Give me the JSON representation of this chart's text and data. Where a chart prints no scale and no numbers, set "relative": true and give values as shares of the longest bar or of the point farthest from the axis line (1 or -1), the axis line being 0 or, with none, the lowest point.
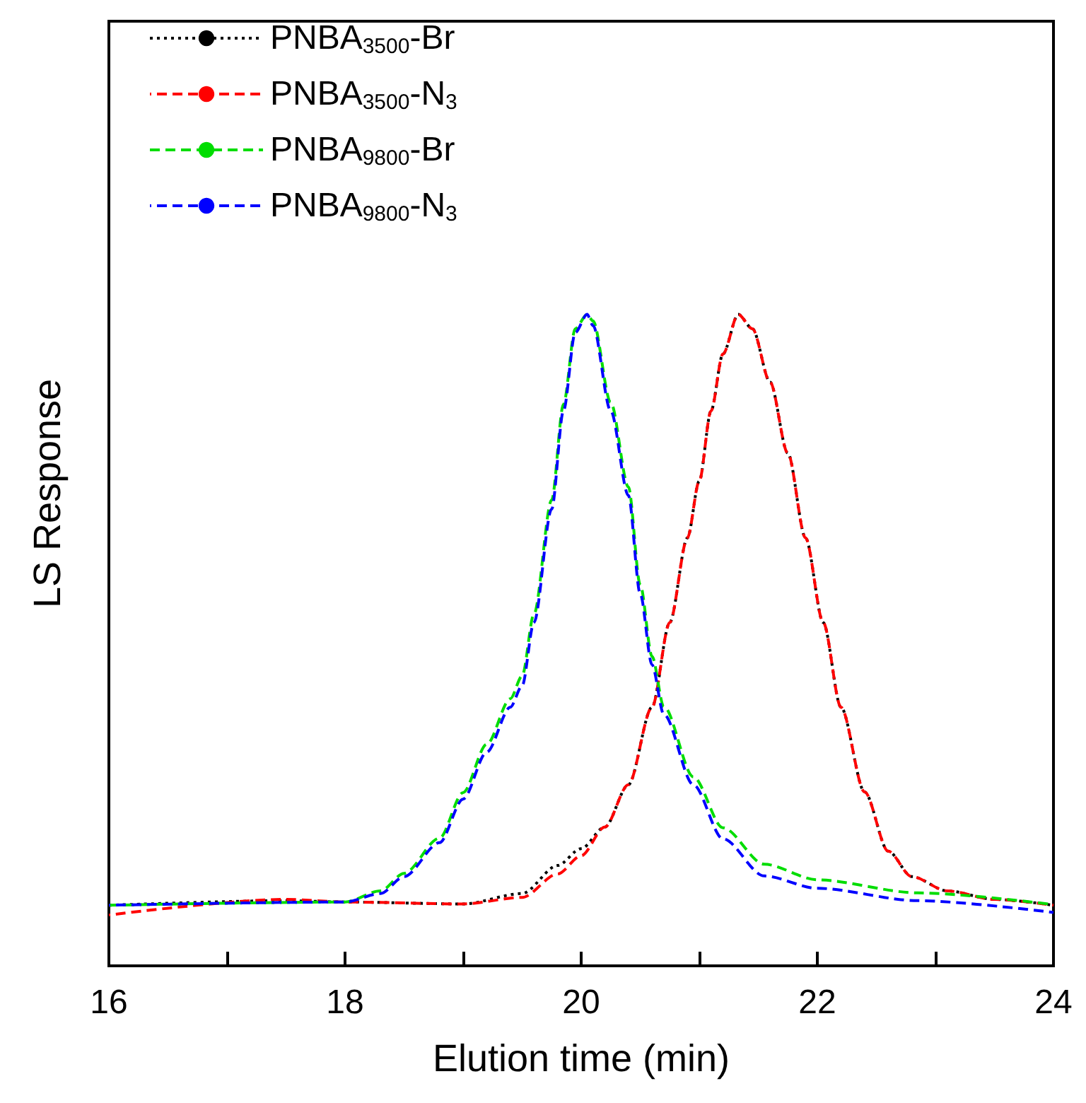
{
  "chart_data": {
    "type": "line",
    "xlabel": "Elution time (min)",
    "ylabel": "LS Response",
    "relative": true,
    "legend": "top left",
    "grid": false,
    "marker": "none",
    "xlim": [
      16,
      24
    ],
    "xticks": [
      16,
      {
        "value": 17,
        "label": null
      },
      18,
      {
        "value": 19,
        "label": null
      },
      20,
      {
        "value": 21,
        "label": null
      },
      22,
      {
        "value": 23,
        "label": null
      },
      24
    ],
    "series": [
      {
        "name": "PNBA$_{3500}$-Br",
        "color": "#000000",
        "line_style": "dotted",
        "x": [
          16,
          17.5,
          18,
          19,
          19.5,
          19.8,
          20,
          20.2,
          20.4,
          20.6,
          20.75,
          20.9,
          21.0,
          21.1,
          21.2,
          21.33,
          21.45,
          21.6,
          21.75,
          21.9,
          22.05,
          22.2,
          22.4,
          22.6,
          22.8,
          23.1,
          23.5,
          24
        ],
        "values": [
          0.093,
          0.1,
          0.098,
          0.095,
          0.111,
          0.154,
          0.18,
          0.213,
          0.278,
          0.397,
          0.527,
          0.657,
          0.744,
          0.852,
          0.939,
          1,
          0.978,
          0.896,
          0.787,
          0.657,
          0.527,
          0.397,
          0.267,
          0.176,
          0.137,
          0.115,
          0.102,
          0.093
        ]
      },
      {
        "name": "PNBA$_{3500}$-N$_{3}$",
        "color": "#ff0000",
        "line_style": "dashed",
        "x": [
          16,
          17.5,
          18,
          19,
          19.5,
          19.8,
          20,
          20.2,
          20.4,
          20.6,
          20.75,
          20.9,
          21.0,
          21.1,
          21.2,
          21.33,
          21.45,
          21.6,
          21.75,
          21.9,
          22.05,
          22.2,
          22.4,
          22.6,
          22.8,
          23.1,
          23.5,
          24
        ],
        "values": [
          0.078,
          0.102,
          0.098,
          0.095,
          0.105,
          0.141,
          0.169,
          0.213,
          0.278,
          0.397,
          0.527,
          0.657,
          0.744,
          0.852,
          0.939,
          1,
          0.978,
          0.896,
          0.787,
          0.657,
          0.527,
          0.397,
          0.267,
          0.176,
          0.137,
          0.115,
          0.102,
          0.093
        ]
      },
      {
        "name": "PNBA$_{9800}$-Br",
        "color": "#00dd00",
        "line_style": "dashed",
        "x": [
          16,
          18,
          18.3,
          18.5,
          18.8,
          19.0,
          19.2,
          19.4,
          19.5,
          19.6,
          19.75,
          19.85,
          19.95,
          20.05,
          20.1,
          20.25,
          20.4,
          20.5,
          20.6,
          20.7,
          20.95,
          21.2,
          21.55,
          22,
          22.85,
          24
        ],
        "values": [
          0.093,
          0.098,
          0.115,
          0.142,
          0.196,
          0.266,
          0.34,
          0.41,
          0.445,
          0.54,
          0.715,
          0.862,
          0.978,
          1,
          0.99,
          0.865,
          0.735,
          0.585,
          0.475,
          0.398,
          0.29,
          0.212,
          0.156,
          0.132,
          0.112,
          0.094
        ]
      },
      {
        "name": "PNBA$_{9800}$-N$_{3}$",
        "color": "#0000ff",
        "line_style": "dashed",
        "x": [
          16,
          18,
          18.3,
          18.5,
          18.8,
          19.0,
          19.2,
          19.4,
          19.5,
          19.6,
          19.75,
          19.85,
          19.95,
          20.05,
          20.1,
          20.25,
          20.4,
          20.5,
          20.6,
          20.7,
          20.95,
          21.2,
          21.55,
          22,
          22.85,
          24
        ],
        "values": [
          0.093,
          0.098,
          0.111,
          0.137,
          0.189,
          0.256,
          0.328,
          0.397,
          0.43,
          0.527,
          0.701,
          0.852,
          0.972,
          1,
          0.983,
          0.852,
          0.722,
          0.571,
          0.462,
          0.386,
          0.278,
          0.195,
          0.138,
          0.119,
          0.1,
          0.082
        ]
      }
    ]
  }
}
